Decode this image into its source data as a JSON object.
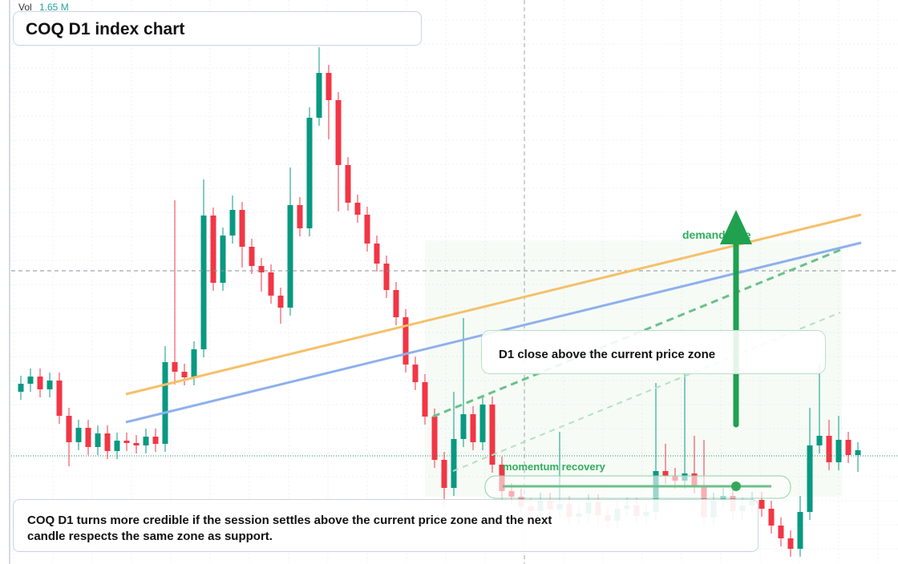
{
  "chart_data": {
    "type": "candlestick",
    "title": "COQ D1 index chart",
    "volume_label": "Vol",
    "volume_value": "1.65 M",
    "up_color": "#089981",
    "down_color": "#f23645",
    "ylim": [
      0,
      70.4
    ],
    "candles": [
      [
        21.5,
        23.5,
        20.5,
        22.5
      ],
      [
        22.5,
        24.4,
        21.5,
        23.4
      ],
      [
        23.4,
        24.4,
        20.8,
        21.8
      ],
      [
        21.8,
        23.9,
        20.8,
        22.9
      ],
      [
        22.9,
        23.9,
        17.5,
        18.5
      ],
      [
        18.5,
        19.5,
        12.2,
        15.2
      ],
      [
        15.2,
        18.0,
        14.2,
        17.0
      ],
      [
        17.0,
        18.0,
        13.6,
        14.6
      ],
      [
        14.6,
        17.3,
        13.6,
        16.3
      ],
      [
        16.3,
        17.3,
        13.1,
        14.1
      ],
      [
        14.1,
        16.4,
        13.1,
        15.4
      ],
      [
        15.4,
        16.4,
        14.1,
        15.1
      ],
      [
        15.1,
        16.1,
        13.8,
        14.8
      ],
      [
        14.8,
        16.9,
        13.8,
        15.9
      ],
      [
        15.9,
        16.9,
        14.0,
        15.0
      ],
      [
        15.0,
        27.2,
        14.0,
        25.2
      ],
      [
        25.2,
        45.4,
        22.4,
        24.0
      ],
      [
        24.0,
        25.0,
        22.3,
        23.3
      ],
      [
        23.3,
        27.8,
        22.3,
        26.8
      ],
      [
        26.8,
        48.0,
        25.8,
        43.5
      ],
      [
        43.5,
        44.5,
        34.1,
        35.1
      ],
      [
        35.1,
        42.0,
        34.1,
        41.0
      ],
      [
        41.0,
        46.0,
        40.0,
        44.2
      ],
      [
        44.2,
        45.2,
        37.0,
        39.6
      ],
      [
        39.6,
        40.6,
        36.2,
        37.2
      ],
      [
        37.2,
        38.2,
        34.0,
        36.4
      ],
      [
        36.4,
        37.4,
        32.5,
        33.5
      ],
      [
        33.5,
        34.5,
        30.0,
        32.0
      ],
      [
        32.0,
        49.5,
        31.0,
        44.8
      ],
      [
        44.8,
        45.8,
        40.9,
        41.9
      ],
      [
        41.9,
        57.0,
        40.9,
        55.7
      ],
      [
        55.7,
        64.5,
        54.7,
        61.3
      ],
      [
        61.3,
        62.3,
        53.0,
        57.9
      ],
      [
        57.9,
        58.9,
        44.0,
        49.8
      ],
      [
        49.8,
        50.8,
        44.1,
        45.1
      ],
      [
        45.1,
        46.1,
        42.6,
        43.6
      ],
      [
        43.6,
        44.6,
        39.0,
        40.0
      ],
      [
        40.0,
        41.0,
        36.5,
        37.5
      ],
      [
        37.5,
        38.5,
        33.2,
        34.2
      ],
      [
        34.2,
        35.2,
        29.8,
        30.8
      ],
      [
        30.8,
        31.8,
        23.9,
        24.9
      ],
      [
        24.9,
        25.9,
        21.7,
        22.7
      ],
      [
        22.7,
        23.7,
        17.4,
        18.4
      ],
      [
        18.4,
        19.4,
        12.0,
        13.0
      ],
      [
        13.0,
        14.0,
        7.0,
        9.5
      ],
      [
        9.5,
        21.5,
        8.5,
        15.6
      ],
      [
        15.6,
        30.7,
        14.6,
        18.7
      ],
      [
        18.7,
        19.7,
        14.2,
        15.2
      ],
      [
        15.2,
        20.9,
        14.2,
        19.9
      ],
      [
        19.9,
        20.9,
        11.4,
        12.4
      ],
      [
        12.4,
        13.4,
        8.1,
        9.1
      ],
      [
        9.1,
        10.1,
        7.4,
        8.4
      ],
      [
        8.4,
        9.4,
        6.2,
        7.2
      ],
      [
        7.2,
        8.2,
        5.6,
        6.6
      ],
      [
        6.6,
        8.9,
        5.6,
        7.9
      ],
      [
        7.9,
        8.9,
        5.8,
        6.8
      ],
      [
        6.8,
        16.5,
        5.8,
        7.5
      ],
      [
        7.5,
        8.5,
        4.9,
        5.9
      ],
      [
        5.9,
        7.3,
        4.9,
        6.3
      ],
      [
        6.3,
        8.7,
        5.3,
        7.7
      ],
      [
        7.7,
        8.7,
        5.1,
        6.1
      ],
      [
        6.1,
        7.1,
        4.4,
        5.4
      ],
      [
        5.4,
        7.9,
        4.4,
        6.9
      ],
      [
        6.9,
        8.3,
        5.9,
        7.3
      ],
      [
        7.3,
        8.3,
        5.0,
        6.0
      ],
      [
        6.0,
        7.5,
        5.0,
        6.5
      ],
      [
        6.5,
        22.6,
        5.5,
        11.6
      ],
      [
        11.6,
        15.0,
        10.0,
        11.0
      ],
      [
        11.0,
        12.0,
        9.4,
        10.4
      ],
      [
        10.4,
        24.0,
        9.4,
        11.3
      ],
      [
        11.3,
        16.0,
        8.8,
        9.8
      ],
      [
        9.8,
        15.5,
        4.8,
        5.8
      ],
      [
        5.8,
        8.9,
        4.8,
        7.9
      ],
      [
        7.9,
        9.5,
        6.9,
        8.5
      ],
      [
        8.5,
        9.5,
        5.6,
        6.6
      ],
      [
        6.6,
        8.3,
        5.6,
        7.3
      ],
      [
        7.3,
        9.0,
        6.3,
        8.0
      ],
      [
        8.0,
        9.0,
        5.9,
        6.9
      ],
      [
        6.9,
        7.9,
        3.8,
        4.8
      ],
      [
        4.8,
        5.8,
        2.2,
        3.2
      ],
      [
        3.2,
        4.2,
        0.9,
        1.9
      ],
      [
        1.9,
        8.5,
        0.9,
        6.5
      ],
      [
        6.5,
        19.5,
        5.5,
        14.8
      ],
      [
        14.8,
        25.0,
        13.8,
        16.0
      ],
      [
        16.0,
        18.0,
        11.7,
        12.7
      ],
      [
        12.7,
        18.5,
        11.7,
        15.5
      ],
      [
        15.5,
        16.5,
        12.6,
        13.6
      ],
      [
        13.6,
        15.2,
        11.5,
        14.2
      ]
    ],
    "annotations": {
      "demand_label": "demand side",
      "zone_callout": "D1 close above the current price zone",
      "momentum_label": "momentum recovery",
      "note": "COQ D1 turns more credible if the session settles above the current price zone and the next candle respects the same zone as support."
    }
  }
}
